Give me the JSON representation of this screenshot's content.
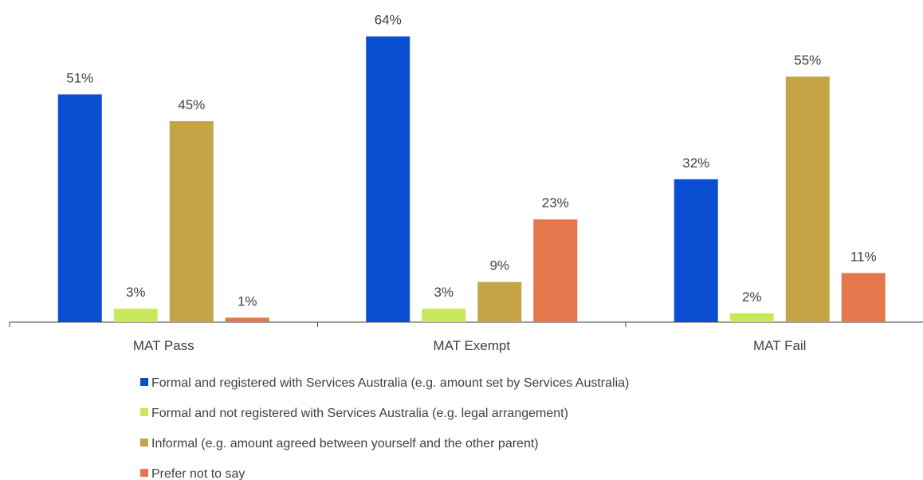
{
  "chart_data": {
    "type": "bar",
    "categories": [
      "MAT Pass",
      "MAT Exempt",
      "MAT Fail"
    ],
    "series": [
      {
        "name": "Formal and registered with Services Australia (e.g. amount set by Services Australia)",
        "color": "#0a4fd1",
        "values": [
          51,
          64,
          32
        ],
        "value_labels": [
          "51%",
          "64%",
          "32%"
        ]
      },
      {
        "name": "Formal and not registered with Services Australia (e.g. legal arrangement)",
        "color": "#c9e75b",
        "values": [
          3,
          3,
          2
        ],
        "value_labels": [
          "3%",
          "3%",
          "2%"
        ]
      },
      {
        "name": "Informal (e.g. amount agreed between yourself and the other parent)",
        "color": "#c4a445",
        "values": [
          45,
          9,
          55
        ],
        "value_labels": [
          "45%",
          "9%",
          "55%"
        ]
      },
      {
        "name": "Prefer not to say",
        "color": "#e5774c",
        "values": [
          1,
          23,
          11
        ],
        "value_labels": [
          "1%",
          "23%",
          "11%"
        ]
      }
    ],
    "legend": "bottom"
  }
}
